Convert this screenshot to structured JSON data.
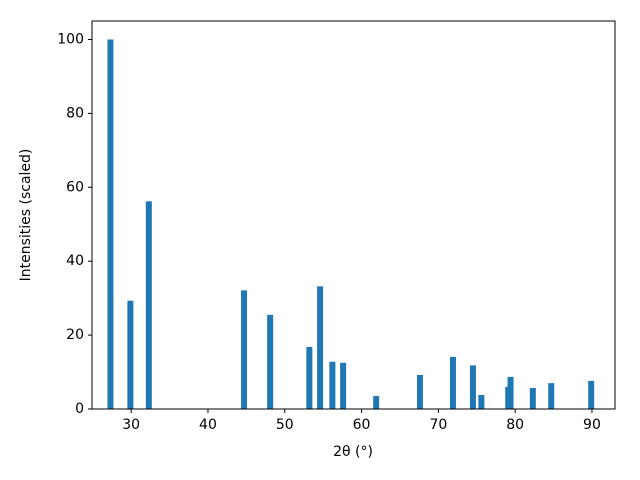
{
  "chart_data": {
    "type": "bar",
    "x_label": "2θ (°)",
    "y_label": "Intensities (scaled)",
    "x": [
      27.3,
      29.9,
      32.3,
      44.7,
      48.1,
      53.2,
      54.6,
      56.2,
      57.6,
      61.9,
      67.6,
      71.9,
      74.5,
      75.6,
      79.1,
      79.4,
      82.3,
      84.7,
      89.9
    ],
    "values": [
      100,
      29.3,
      56.2,
      32.1,
      25.5,
      16.8,
      33.2,
      12.8,
      12.5,
      3.5,
      9.2,
      14.1,
      11.8,
      3.8,
      6.0,
      8.7,
      5.7,
      7.0,
      7.6
    ],
    "color": "#1f77b4",
    "xlim": [
      24.9,
      93.0
    ],
    "xticks": [
      30,
      40,
      50,
      60,
      70,
      80,
      90
    ],
    "ylim": [
      0,
      105
    ],
    "yticks": [
      0,
      20,
      40,
      60,
      80,
      100
    ],
    "grid": false
  }
}
